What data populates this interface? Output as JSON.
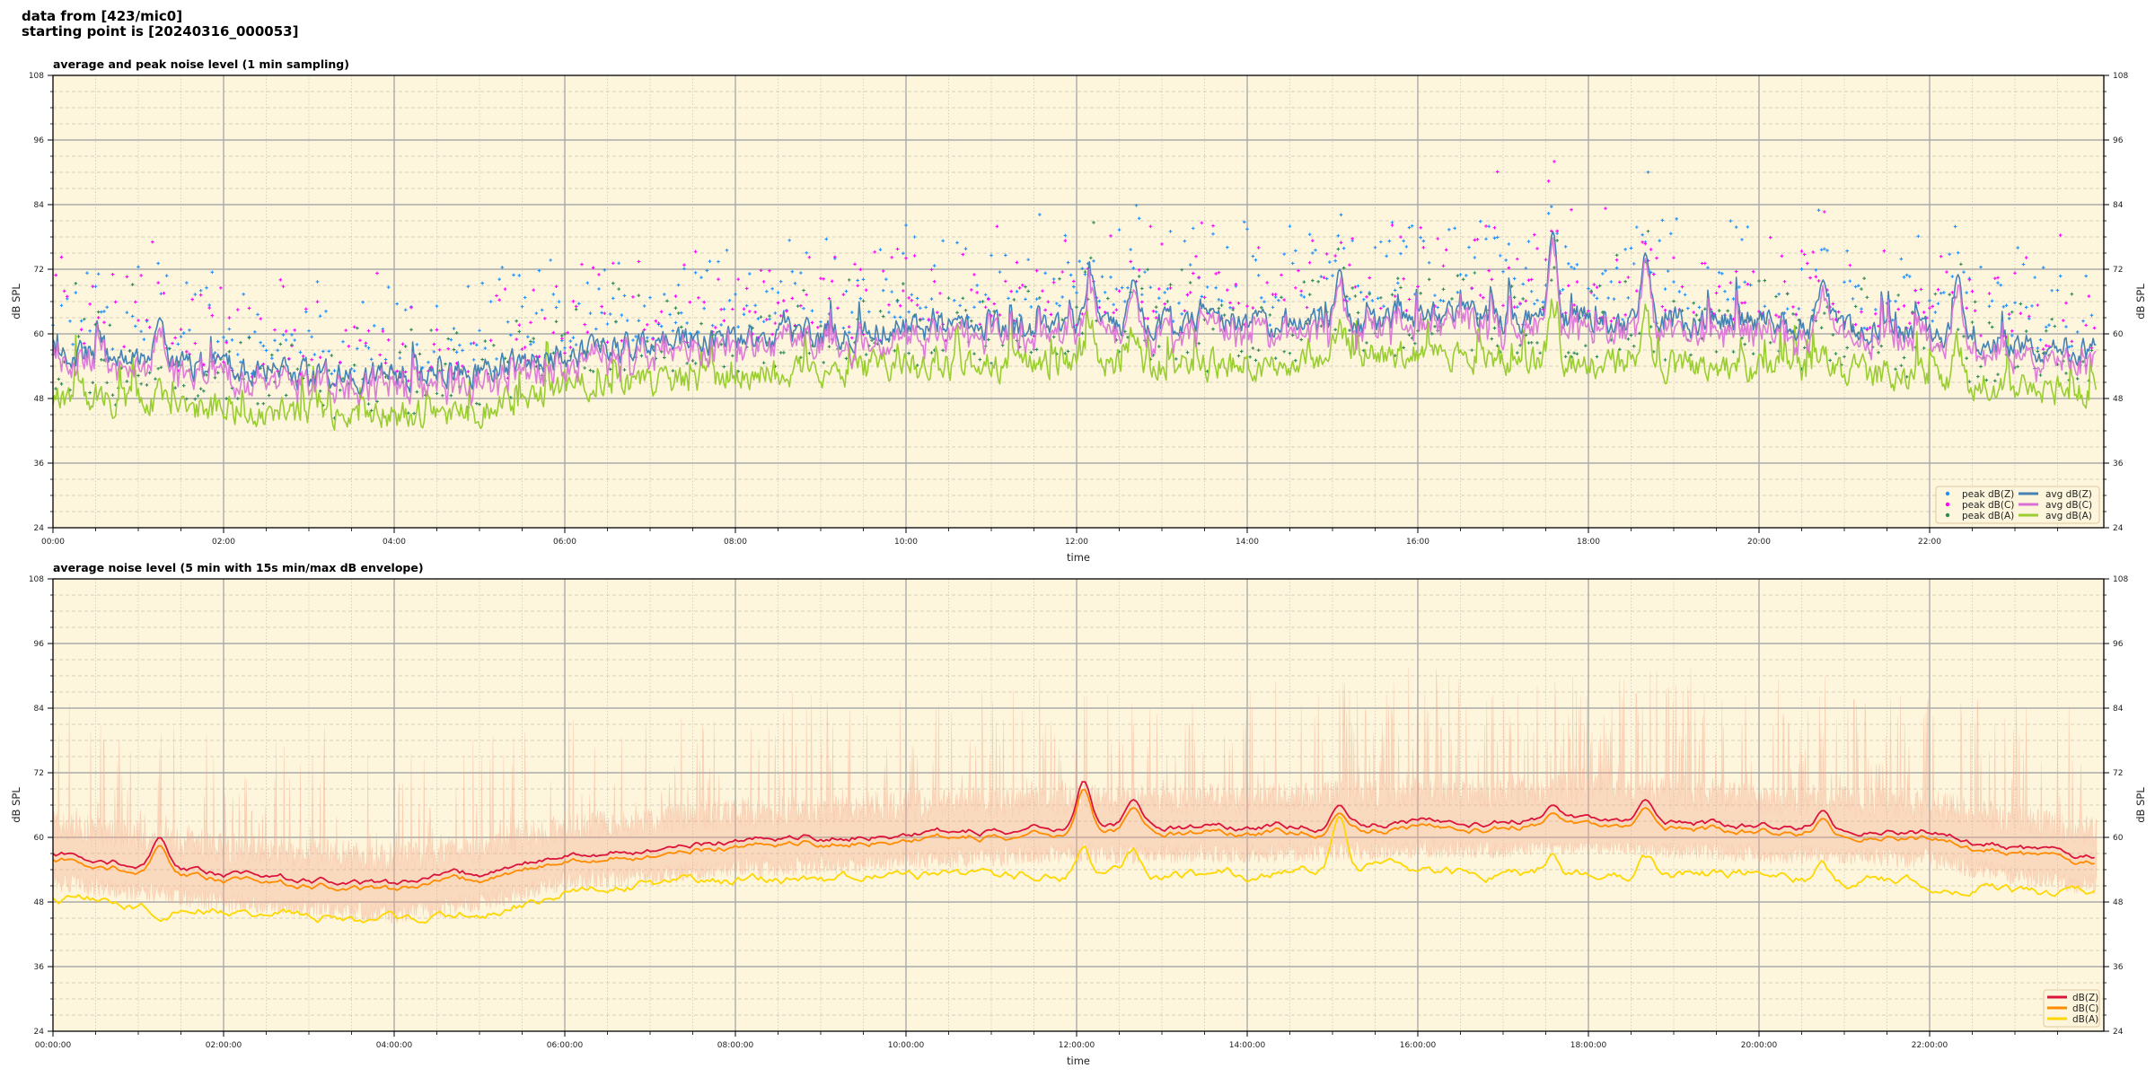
{
  "header": {
    "line1": "data from [423/mic0]",
    "line2": "starting point is [20240316_000053]"
  },
  "colors": {
    "plot_bg": "#fdf6dc",
    "peak_z": "#1e90ff",
    "peak_c": "#ff00ff",
    "peak_a": "#2e8b57",
    "avg_z": "#4682b4",
    "avg_c": "#da70d6",
    "avg_a": "#9acd32",
    "line_z": "#dc143c",
    "line_c": "#ff8c00",
    "line_a": "#ffd700",
    "envelope": "#f4a58a"
  },
  "chart_data": [
    {
      "type": "line",
      "title": "average and peak noise level (1 min sampling)",
      "xlabel": "time",
      "ylabel": "dB SPL",
      "ylim": [
        24,
        108
      ],
      "yticks": [
        "108",
        "96",
        "84",
        "72",
        "60",
        "48",
        "36",
        "24"
      ],
      "xlim_hours": [
        0,
        24
      ],
      "xticks": [
        "00:00",
        "02:00",
        "04:00",
        "06:00",
        "08:00",
        "10:00",
        "12:00",
        "14:00",
        "16:00",
        "18:00",
        "20:00",
        "22:00"
      ],
      "grid": true,
      "legend_position": "lower-right",
      "hours": [
        0,
        1,
        2,
        3,
        4,
        5,
        6,
        7,
        8,
        9,
        10,
        11,
        12,
        13,
        14,
        15,
        16,
        17,
        18,
        19,
        20,
        21,
        22,
        23,
        24
      ],
      "series": [
        {
          "name": "avg dB(Z)",
          "kind": "line",
          "values": [
            57,
            55,
            54,
            52,
            52,
            53,
            56,
            58,
            59,
            60,
            61,
            61,
            62,
            62,
            62,
            62,
            63,
            63,
            63,
            62,
            62,
            61,
            60,
            58,
            57
          ]
        },
        {
          "name": "avg dB(C)",
          "kind": "line",
          "values": [
            56,
            54,
            53,
            51,
            51,
            52,
            55,
            57,
            58,
            59,
            60,
            60,
            61,
            61,
            61,
            61,
            62,
            62,
            62,
            61,
            61,
            60,
            59,
            57,
            56
          ]
        },
        {
          "name": "avg dB(A)",
          "kind": "line",
          "values": [
            49,
            47,
            46,
            45,
            45,
            45,
            50,
            51,
            52,
            53,
            54,
            54,
            55,
            54,
            54,
            56,
            56,
            55,
            55,
            54,
            54,
            53,
            52,
            50,
            49
          ]
        },
        {
          "name": "peak dB(Z)",
          "kind": "scatter",
          "values": [
            64,
            62,
            61,
            59,
            59,
            60,
            63,
            65,
            66,
            67,
            68,
            68,
            70,
            69,
            69,
            70,
            71,
            72,
            72,
            70,
            70,
            69,
            68,
            65,
            64
          ]
        },
        {
          "name": "peak dB(C)",
          "kind": "scatter",
          "values": [
            63,
            61,
            60,
            58,
            58,
            59,
            62,
            64,
            65,
            66,
            67,
            67,
            69,
            68,
            68,
            69,
            70,
            71,
            71,
            69,
            69,
            68,
            67,
            64,
            63
          ]
        },
        {
          "name": "peak dB(A)",
          "kind": "scatter",
          "values": [
            55,
            53,
            52,
            51,
            51,
            51,
            56,
            57,
            58,
            59,
            60,
            60,
            61,
            60,
            60,
            62,
            62,
            61,
            61,
            60,
            60,
            59,
            58,
            56,
            55
          ]
        }
      ],
      "spikes": [
        {
          "time": "01:15",
          "dB": 63
        },
        {
          "time": "12:10",
          "dB": 71
        },
        {
          "time": "12:40",
          "dB": 70
        },
        {
          "time": "15:05",
          "dB": 72
        },
        {
          "time": "17:35",
          "dB": 79
        },
        {
          "time": "18:40",
          "dB": 75
        },
        {
          "time": "20:45",
          "dB": 70
        },
        {
          "time": "22:20",
          "dB": 71
        }
      ],
      "legend": [
        "peak dB(Z)",
        "peak dB(C)",
        "peak dB(A)",
        "avg dB(Z)",
        "avg dB(C)",
        "avg dB(A)"
      ]
    },
    {
      "type": "line",
      "title": "average noise level (5 min with 15s min/max dB envelope)",
      "xlabel": "time",
      "ylabel": "dB SPL",
      "ylim": [
        24,
        108
      ],
      "yticks": [
        "108",
        "96",
        "84",
        "72",
        "60",
        "48",
        "36",
        "24"
      ],
      "xlim_hours": [
        0,
        24
      ],
      "xticks": [
        "00:00:00",
        "02:00:00",
        "04:00:00",
        "06:00:00",
        "08:00:00",
        "10:00:00",
        "12:00:00",
        "14:00:00",
        "16:00:00",
        "18:00:00",
        "20:00:00",
        "22:00:00"
      ],
      "grid": true,
      "legend_position": "lower-right",
      "hours": [
        0,
        1,
        2,
        3,
        4,
        5,
        6,
        7,
        8,
        9,
        10,
        11,
        12,
        13,
        14,
        15,
        16,
        17,
        18,
        19,
        20,
        21,
        22,
        23,
        24
      ],
      "series": [
        {
          "name": "dB(Z)",
          "values": [
            57,
            55,
            53,
            52,
            51,
            53,
            57,
            58,
            59.5,
            60,
            61,
            61.5,
            62,
            62,
            62,
            62.5,
            63,
            63,
            64,
            63,
            62,
            62,
            61,
            58,
            56
          ]
        },
        {
          "name": "dB(C)",
          "values": [
            56,
            54,
            52,
            51,
            50,
            52,
            56,
            57,
            58.5,
            59,
            60,
            60.5,
            61,
            61,
            61,
            61.5,
            62,
            62,
            63,
            62,
            61,
            61,
            60,
            57,
            55
          ]
        },
        {
          "name": "dB(A)",
          "values": [
            49,
            47,
            47,
            45,
            45,
            46,
            50,
            51,
            52,
            52,
            53,
            53,
            53,
            53,
            53,
            54,
            54,
            53,
            53,
            53,
            53,
            52,
            52,
            50,
            49
          ]
        }
      ],
      "spikes": [
        {
          "time": "01:15",
          "dB": 60
        },
        {
          "time": "12:05",
          "dB": 70.5
        },
        {
          "time": "12:40",
          "dB": 67
        },
        {
          "time": "15:05",
          "dB": 66
        },
        {
          "time": "17:35",
          "dB": 66
        },
        {
          "time": "18:40",
          "dB": 67
        },
        {
          "time": "20:45",
          "dB": 65
        }
      ],
      "envelope_max_dB": 92,
      "legend": [
        "dB(Z)",
        "dB(C)",
        "dB(A)"
      ]
    }
  ]
}
